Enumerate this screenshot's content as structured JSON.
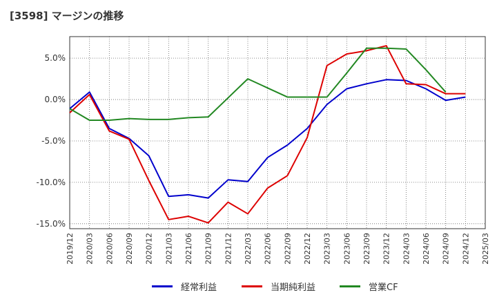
{
  "title": "[3598]  マージンの推移",
  "chart_data": {
    "type": "line",
    "x": [
      "2019/12",
      "2020/03",
      "2020/06",
      "2020/09",
      "2020/12",
      "2021/03",
      "2021/06",
      "2021/09",
      "2021/12",
      "2022/03",
      "2022/06",
      "2022/09",
      "2022/12",
      "2023/03",
      "2023/06",
      "2023/09",
      "2023/12",
      "2024/03",
      "2024/06",
      "2024/09",
      "2024/12",
      "2025/03"
    ],
    "y_ticks": [
      5.0,
      0.0,
      -5.0,
      -10.0,
      -15.0
    ],
    "y_tick_labels": [
      "5.0%",
      "0.0%",
      "-5.0%",
      "-10.0%",
      "-15.0%"
    ],
    "ylim": [
      -15.6,
      7.6
    ],
    "grid": true,
    "legend_position": "bottom",
    "series": [
      {
        "name": "経常利益",
        "color": "#0000cc",
        "values": [
          -1.1,
          0.9,
          -3.5,
          -4.7,
          -6.8,
          -11.7,
          -11.5,
          -11.9,
          -9.7,
          -9.9,
          -7.0,
          -5.5,
          -3.5,
          -0.6,
          1.3,
          1.9,
          2.4,
          2.3,
          1.3,
          -0.1,
          0.3,
          null
        ]
      },
      {
        "name": "当期純利益",
        "color": "#dd0000",
        "values": [
          -1.6,
          0.6,
          -3.8,
          -4.8,
          -9.8,
          -14.5,
          -14.1,
          -14.9,
          -12.4,
          -13.8,
          -10.7,
          -9.2,
          -4.6,
          4.1,
          5.5,
          5.9,
          6.5,
          1.9,
          1.8,
          0.7,
          0.7,
          null
        ]
      },
      {
        "name": "営業CF",
        "color": "#228822",
        "values": [
          -1.1,
          -2.5,
          -2.5,
          -2.3,
          -2.4,
          -2.4,
          -2.2,
          -2.1,
          0.2,
          2.5,
          1.4,
          0.3,
          0.3,
          0.3,
          3.2,
          6.2,
          6.2,
          6.1,
          3.6,
          0.9,
          null,
          null
        ]
      }
    ]
  }
}
